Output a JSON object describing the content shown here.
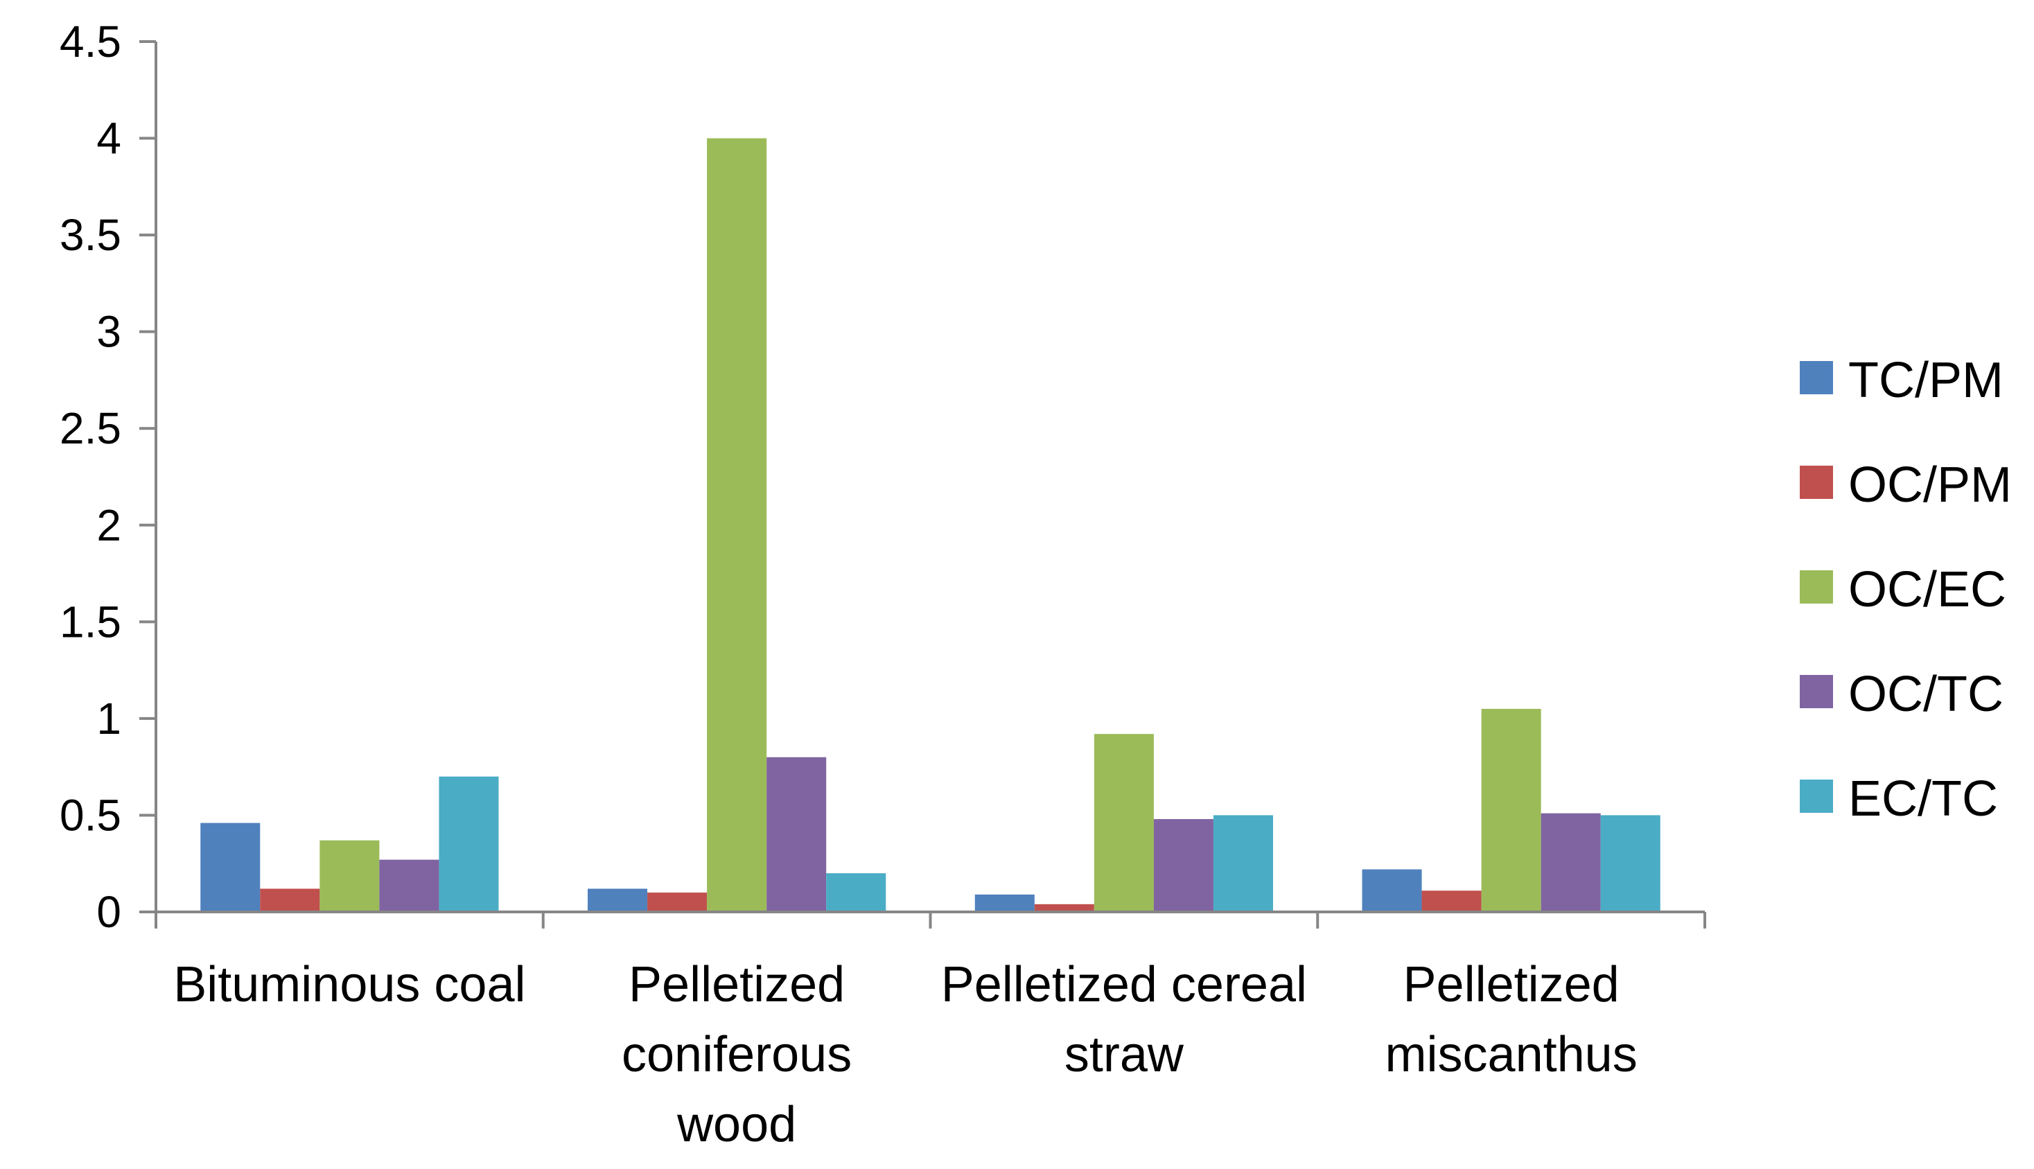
{
  "chart_data": {
    "type": "bar",
    "title": "",
    "xlabel": "",
    "ylabel": "",
    "ylim": [
      0,
      4.5
    ],
    "yticks": [
      "0",
      "0.5",
      "1",
      "1.5",
      "2",
      "2.5",
      "3",
      "3.5",
      "4",
      "4.5"
    ],
    "grid": false,
    "legend_position": "right",
    "categories": [
      {
        "lines": [
          "Bituminous coal"
        ]
      },
      {
        "lines": [
          "Pelletized",
          "coniferous",
          "wood"
        ]
      },
      {
        "lines": [
          "Pelletized cereal",
          "straw"
        ]
      },
      {
        "lines": [
          "Pelletized",
          "miscanthus"
        ]
      }
    ],
    "series": [
      {
        "name": "TC/PM",
        "color": "#4F81BD",
        "values": [
          0.46,
          0.12,
          0.09,
          0.22
        ]
      },
      {
        "name": "OC/PM",
        "color": "#C0504D",
        "values": [
          0.12,
          0.1,
          0.04,
          0.11
        ]
      },
      {
        "name": "OC/EC",
        "color": "#9BBB59",
        "values": [
          0.37,
          4.0,
          0.92,
          1.05
        ]
      },
      {
        "name": "OC/TC",
        "color": "#8064A2",
        "values": [
          0.27,
          0.8,
          0.48,
          0.51
        ]
      },
      {
        "name": "EC/TC",
        "color": "#4BACC6",
        "values": [
          0.7,
          0.2,
          0.5,
          0.5
        ]
      }
    ]
  }
}
